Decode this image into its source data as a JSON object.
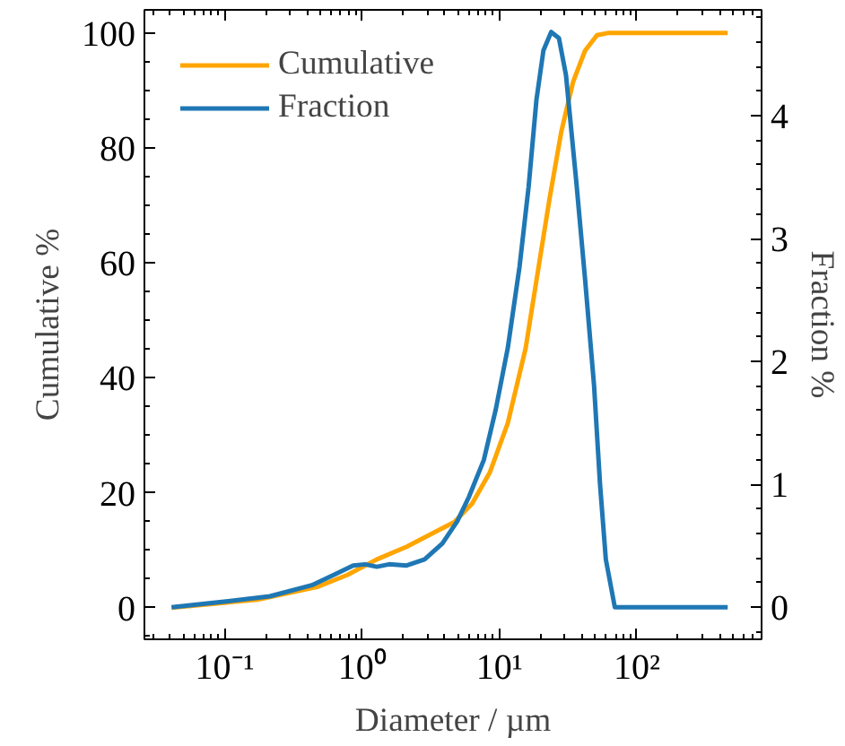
{
  "chart_data": {
    "type": "line",
    "xlabel": "Diameter / µm",
    "ylabel": "Cumulative %",
    "y2label": "Fraction %",
    "log": "x",
    "xlim": [
      0.026,
      810
    ],
    "xticks": [
      {
        "value": 0.1,
        "label": "10⁻¹"
      },
      {
        "value": 1,
        "label": "10⁰"
      },
      {
        "value": 10,
        "label": "10¹"
      },
      {
        "value": 100,
        "label": "10²"
      }
    ],
    "ylim": [
      -5.5,
      104
    ],
    "yticks": [
      0,
      20,
      40,
      60,
      80,
      100
    ],
    "y2lim": [
      -0.26,
      4.86
    ],
    "y2ticks": [
      0,
      1,
      2,
      3,
      4
    ],
    "legend": "top left",
    "grid": false,
    "series": [
      {
        "name": "Cumulative",
        "color": "#ffa500",
        "x": [
          0.041,
          0.173,
          0.47,
          0.78,
          1.28,
          2.11,
          3.48,
          4.69,
          6.32,
          8.5,
          11.5,
          15.5,
          18.9,
          23.1,
          28.2,
          34.4,
          42.0,
          51.3,
          62.5,
          459
        ],
        "values": [
          0,
          1.4,
          3.6,
          5.7,
          8.4,
          10.6,
          13.3,
          14.9,
          18.1,
          23.5,
          32.1,
          45.1,
          58.0,
          71.0,
          82.8,
          91.5,
          96.9,
          99.6,
          100,
          100
        ]
      },
      {
        "name": "Fraction",
        "color": "#1f77b4",
        "axis": "y2",
        "x": [
          0.041,
          0.106,
          0.213,
          0.43,
          0.64,
          0.86,
          1.05,
          1.28,
          1.57,
          2.11,
          2.85,
          3.84,
          4.93,
          6.0,
          7.7,
          9.4,
          11.5,
          14.0,
          16.3,
          18.6,
          20.9,
          23.8,
          27.1,
          30.5,
          36.2,
          42.0,
          48.8,
          54.0,
          59.5,
          69.2,
          459
        ],
        "values": [
          0,
          0.05,
          0.09,
          0.18,
          0.27,
          0.34,
          0.35,
          0.33,
          0.35,
          0.34,
          0.39,
          0.52,
          0.7,
          0.9,
          1.2,
          1.61,
          2.11,
          2.77,
          3.42,
          4.13,
          4.53,
          4.68,
          4.63,
          4.33,
          3.47,
          2.67,
          1.81,
          1.0,
          0.39,
          0,
          0
        ]
      }
    ]
  }
}
